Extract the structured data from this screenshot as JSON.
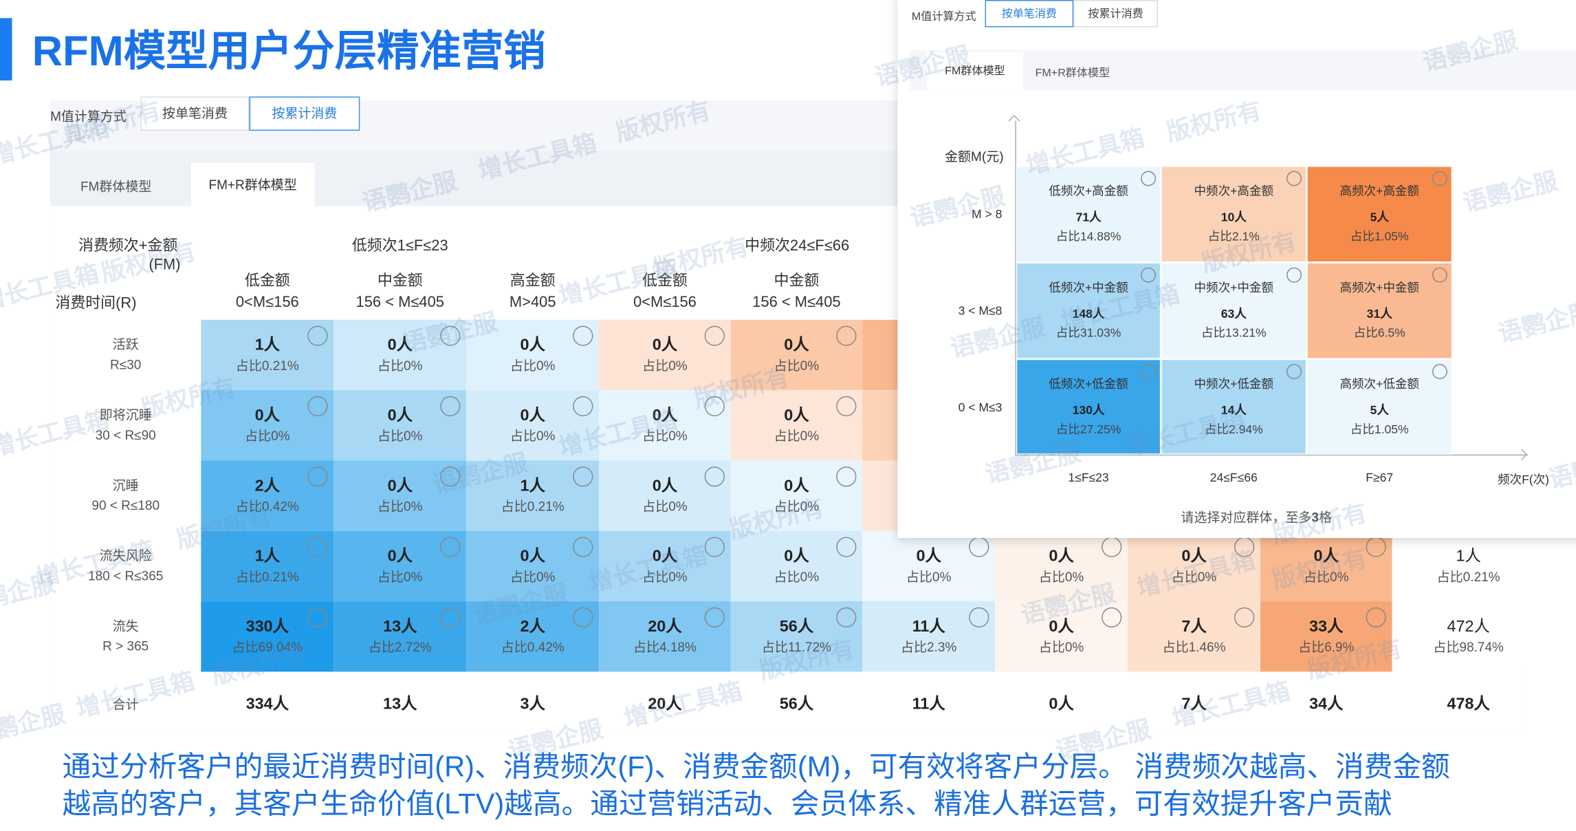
{
  "title": "RFM模型用户分层精准营销",
  "watermarks": [
    "语鹦企服",
    "增长工具箱",
    "版权所有"
  ],
  "main": {
    "calc_label": "M值计算方式",
    "calc_options": [
      "按单笔消费",
      "按累计消费"
    ],
    "model_tabs": [
      "FM群体模型",
      "FM+R群体模型"
    ],
    "corner_line1": "消费频次+金额",
    "corner_line2": "(FM)",
    "corner_row": "消费时间(R)",
    "groups": [
      "低频次1≤F≤23",
      "中频次24≤F≤66"
    ],
    "columns": [
      {
        "name": "低金额",
        "range": "0<M≤156"
      },
      {
        "name": "中金额",
        "range": "156 < M≤405"
      },
      {
        "name": "高金额",
        "range": "M>405"
      },
      {
        "name": "低金额",
        "range": "0<M≤156"
      },
      {
        "name": "中金额",
        "range": "156 < M≤405"
      }
    ],
    "rows": [
      {
        "name": "活跃",
        "range": "R≤30",
        "cells": [
          {
            "count": "1人",
            "share": "占比0.21%"
          },
          {
            "count": "0人",
            "share": "占比0%"
          },
          {
            "count": "0人",
            "share": "占比0%"
          },
          {
            "count": "0人",
            "share": "占比0%"
          },
          {
            "count": "0人",
            "share": "占比0%"
          }
        ]
      },
      {
        "name": "即将沉睡",
        "range": "30 < R≤90",
        "cells": [
          {
            "count": "0人",
            "share": "占比0%"
          },
          {
            "count": "0人",
            "share": "占比0%"
          },
          {
            "count": "0人",
            "share": "占比0%"
          },
          {
            "count": "0人",
            "share": "占比0%"
          },
          {
            "count": "0人",
            "share": "占比0%"
          }
        ]
      },
      {
        "name": "沉睡",
        "range": "90 < R≤180",
        "cells": [
          {
            "count": "2人",
            "share": "占比0.42%"
          },
          {
            "count": "0人",
            "share": "占比0%"
          },
          {
            "count": "1人",
            "share": "占比0.21%"
          },
          {
            "count": "0人",
            "share": "占比0%"
          },
          {
            "count": "0人",
            "share": "占比0%"
          }
        ]
      },
      {
        "name": "流失风险",
        "range": "180 < R≤365",
        "cells": [
          {
            "count": "1人",
            "share": "占比0.21%"
          },
          {
            "count": "0人",
            "share": "占比0%"
          },
          {
            "count": "0人",
            "share": "占比0%"
          },
          {
            "count": "0人",
            "share": "占比0%"
          },
          {
            "count": "0人",
            "share": "占比0%"
          },
          {
            "count": "0人",
            "share": "占比0%"
          },
          {
            "count": "0人",
            "share": "占比0%"
          },
          {
            "count": "0人",
            "share": "占比0%"
          },
          {
            "count": "0人",
            "share": "占比0%"
          },
          {
            "count": "1人",
            "share": "占比0.21%"
          }
        ]
      },
      {
        "name": "流失",
        "range": "R > 365",
        "cells": [
          {
            "count": "330人",
            "share": "占比69.04%"
          },
          {
            "count": "13人",
            "share": "占比2.72%"
          },
          {
            "count": "2人",
            "share": "占比0.42%"
          },
          {
            "count": "20人",
            "share": "占比4.18%"
          },
          {
            "count": "56人",
            "share": "占比11.72%"
          },
          {
            "count": "11人",
            "share": "占比2.3%"
          },
          {
            "count": "0人",
            "share": "占比0%"
          },
          {
            "count": "7人",
            "share": "占比1.46%"
          },
          {
            "count": "33人",
            "share": "占比6.9%"
          },
          {
            "count": "472人",
            "share": "占比98.74%"
          }
        ]
      }
    ],
    "total": {
      "name": "合计",
      "cells": [
        "334人",
        "13人",
        "3人",
        "20人",
        "56人",
        "11人",
        "0人",
        "7人",
        "34人",
        "478人"
      ]
    }
  },
  "overlay": {
    "calc_label": "M值计算方式",
    "calc_options": [
      "按单笔消费",
      "按累计消费"
    ],
    "model_tabs": [
      "FM群体模型",
      "FM+R群体模型"
    ],
    "y_title": "金额M(元)",
    "y_labels": [
      "M > 8",
      "3 < M≤8",
      "0 < M≤3"
    ],
    "x_labels": [
      "1≤F≤23",
      "24≤F≤66",
      "F≥67"
    ],
    "x_title": "频次F(次)",
    "grid": [
      [
        {
          "label": "低频次+高金额",
          "count": "71人",
          "share": "占比14.88%"
        },
        {
          "label": "中频次+高金额",
          "count": "10人",
          "share": "占比2.1%"
        },
        {
          "label": "高频次+高金额",
          "count": "5人",
          "share": "占比1.05%"
        }
      ],
      [
        {
          "label": "低频次+中金额",
          "count": "148人",
          "share": "占比31.03%"
        },
        {
          "label": "中频次+中金额",
          "count": "63人",
          "share": "占比13.21%"
        },
        {
          "label": "高频次+中金额",
          "count": "31人",
          "share": "占比6.5%"
        }
      ],
      [
        {
          "label": "低频次+低金额",
          "count": "130人",
          "share": "占比27.25%"
        },
        {
          "label": "中频次+低金额",
          "count": "14人",
          "share": "占比2.94%"
        },
        {
          "label": "高频次+低金额",
          "count": "5人",
          "share": "占比1.05%"
        }
      ]
    ],
    "note": [
      "请选择对应群体，至多",
      "3",
      "格"
    ]
  },
  "footer": [
    "通过分析客户的最近消费时间(R)、消费频次(F)、消费金额(M)，可有效将客户分层。 消费频次越高、消费金额",
    "越高的客户，其客户生命价值(LTV)越高。通过营销活动、会员体系、精准人群运营，可有效提升客户贡献"
  ]
}
